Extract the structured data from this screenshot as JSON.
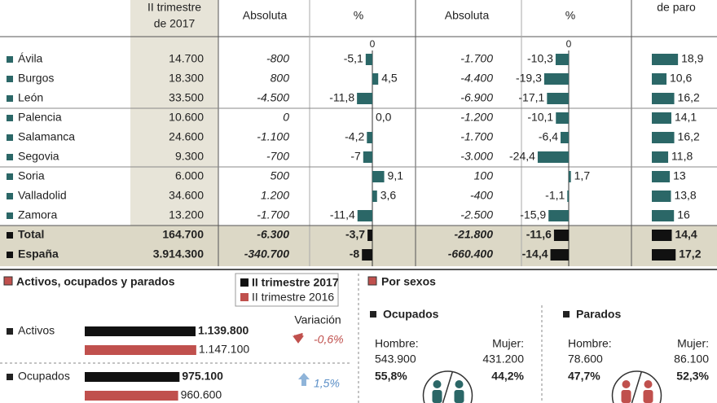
{
  "header": {
    "quarter": [
      "II trimestre",
      "de 2017"
    ],
    "abs1": "Absoluta",
    "pct1": "%",
    "abs2": "Absoluta",
    "pct2": "%",
    "paro": "de paro"
  },
  "zero_ticks": [
    0,
    0
  ],
  "table": {
    "rows": [
      {
        "name": "Ávila",
        "value": "14.700",
        "abs1": "-800",
        "pct1": {
          "value": -5.1,
          "label": "-5,1"
        },
        "abs2": "-1.700",
        "pct2": {
          "value": -10.3,
          "label": "-10,3"
        },
        "paro": {
          "value": 18.9,
          "label": "18,9"
        }
      },
      {
        "name": "Burgos",
        "value": "18.300",
        "abs1": "800",
        "pct1": {
          "value": 4.5,
          "label": "4,5"
        },
        "abs2": "-4.400",
        "pct2": {
          "value": -19.3,
          "label": "-19,3"
        },
        "paro": {
          "value": 10.6,
          "label": "10,6"
        }
      },
      {
        "name": "León",
        "value": "33.500",
        "abs1": "-4.500",
        "pct1": {
          "value": -11.8,
          "label": "-11,8"
        },
        "abs2": "-6.900",
        "pct2": {
          "value": -17.1,
          "label": "-17,1"
        },
        "paro": {
          "value": 16.2,
          "label": "16,2"
        }
      },
      {
        "name": "Palencia",
        "value": "10.600",
        "abs1": "0",
        "pct1": {
          "value": 0,
          "label": "0,0"
        },
        "abs2": "-1.200",
        "pct2": {
          "value": -10.1,
          "label": "-10,1"
        },
        "paro": {
          "value": 14.1,
          "label": "14,1"
        }
      },
      {
        "name": "Salamanca",
        "value": "24.600",
        "abs1": "-1.100",
        "pct1": {
          "value": -4.2,
          "label": "-4,2"
        },
        "abs2": "-1.700",
        "pct2": {
          "value": -6.4,
          "label": "-6,4"
        },
        "paro": {
          "value": 16.2,
          "label": "16,2"
        }
      },
      {
        "name": "Segovia",
        "value": "9.300",
        "abs1": "-700",
        "pct1": -7,
        "abs2": "-3.000",
        "pct2": {
          "value": -24.4,
          "label": "-24,4"
        },
        "paro": {
          "value": 11.8,
          "label": "11,8"
        }
      },
      {
        "name": "Soria",
        "value": "6.000",
        "abs1": "500",
        "pct1": {
          "value": 9.1,
          "label": "9,1"
        },
        "abs2": "100",
        "pct2": {
          "value": 1.7,
          "label": "1,7"
        },
        "paro": 13
      },
      {
        "name": "Valladolid",
        "value": "34.600",
        "abs1": "1.200",
        "pct1": {
          "value": 3.6,
          "label": "3,6"
        },
        "abs2": "-400",
        "pct2": {
          "value": -1.1,
          "label": "-1,1"
        },
        "paro": {
          "value": 13.8,
          "label": "13,8"
        }
      },
      {
        "name": "Zamora",
        "value": "13.200",
        "abs1": "-1.700",
        "pct1": {
          "value": -11.4,
          "label": "-11,4"
        },
        "abs2": "-2.500",
        "pct2": {
          "value": -15.9,
          "label": "-15,9"
        },
        "paro": 16
      },
      {
        "name": "Total",
        "value": "164.700",
        "abs1": "-6.300",
        "pct1": {
          "value": -3.7,
          "label": "-3,7"
        },
        "abs2": "-21.800",
        "pct2": {
          "value": -11.6,
          "label": "-11,6"
        },
        "paro": {
          "value": 14.4,
          "label": "14,4"
        }
      },
      {
        "name": "España",
        "value": "3.914.300",
        "abs1": "-340.700",
        "pct1": -8,
        "abs2": "-660.400",
        "pct2": {
          "value": -14.4,
          "label": "-14,4"
        },
        "paro": {
          "value": 17.2,
          "label": "17,2"
        }
      }
    ]
  },
  "activity": {
    "title": "Activos, ocupados y parados",
    "legend": [
      "II trimestre 2017",
      "II trimestre 2016"
    ],
    "variation_label": "Variación",
    "rows": [
      {
        "name": "Activos",
        "current": {
          "value": 1139800,
          "label": "1.139.800"
        },
        "previous": {
          "value": 1147100,
          "label": "1.147.100"
        },
        "variation": "-0,6%"
      },
      {
        "name": "Ocupados",
        "current": {
          "value": 975100,
          "label": "975.100"
        },
        "previous": {
          "value": 960600,
          "label": "960.600"
        },
        "variation": "1,5%"
      }
    ]
  },
  "by_sex": {
    "title": "Por sexos",
    "groups": [
      {
        "name": "Ocupados",
        "men_label": "Hombre:",
        "men_value": "543.900",
        "men_pct": "55,8%",
        "women_label": "Mujer:",
        "women_value": "431.200",
        "women_pct": "44,2%"
      },
      {
        "name": "Parados",
        "men_label": "Hombre:",
        "men_value": "78.600",
        "men_pct": "47,7%",
        "women_label": "Mujer:",
        "women_value": "86.100",
        "women_pct": "52,3%"
      }
    ]
  }
}
